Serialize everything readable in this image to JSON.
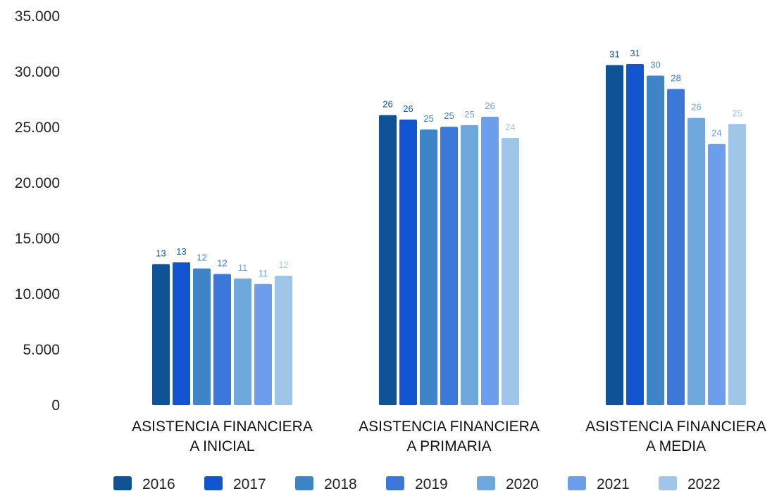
{
  "chart_data": {
    "type": "bar",
    "categories": [
      [
        "ASISTENCIA FINANCIERA",
        "A INICIAL"
      ],
      [
        "ASISTENCIA FINANCIERA",
        "A PRIMARIA"
      ],
      [
        "ASISTENCIA FINANCIERA",
        "A MEDIA"
      ]
    ],
    "series": [
      {
        "name": "2016",
        "color": "#0f5296",
        "values": [
          12700,
          26100,
          30600
        ],
        "labels": [
          "13",
          "26",
          "31"
        ]
      },
      {
        "name": "2017",
        "color": "#1154cf",
        "values": [
          12850,
          25700,
          30700
        ],
        "labels": [
          "13",
          "26",
          "31"
        ]
      },
      {
        "name": "2018",
        "color": "#3d85c6",
        "values": [
          12300,
          24800,
          29650
        ],
        "labels": [
          "12",
          "25",
          "30"
        ]
      },
      {
        "name": "2019",
        "color": "#3c78d8",
        "values": [
          11800,
          25050,
          28450
        ],
        "labels": [
          "12",
          "25",
          "28"
        ]
      },
      {
        "name": "2020",
        "color": "#6fa8dc",
        "values": [
          11400,
          25200,
          25850
        ],
        "labels": [
          "11",
          "25",
          "26"
        ]
      },
      {
        "name": "2021",
        "color": "#6d9eeb",
        "values": [
          10900,
          25950,
          23500
        ],
        "labels": [
          "11",
          "26",
          "24"
        ]
      },
      {
        "name": "2022",
        "color": "#9fc5e8",
        "values": [
          11650,
          24050,
          25300
        ],
        "labels": [
          "12",
          "24",
          "25"
        ]
      }
    ],
    "yticks": [
      "0",
      "5.000",
      "10.000",
      "15.000",
      "20.000",
      "25.000",
      "30.000",
      "35.000"
    ],
    "ylim": [
      0,
      35000
    ],
    "grid": false,
    "legend": "bottom"
  }
}
